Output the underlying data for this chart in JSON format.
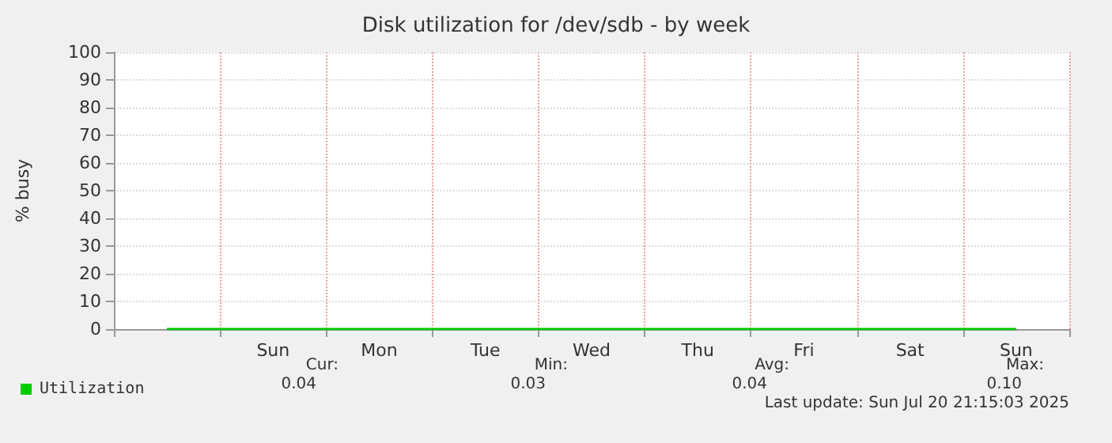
{
  "chart_data": {
    "type": "line",
    "title": "Disk utilization for /dev/sdb - by week",
    "ylabel": "% busy",
    "categories": [
      null,
      "Sun",
      "Mon",
      "Tue",
      "Wed",
      "Thu",
      "Fri",
      "Sat",
      "Sun"
    ],
    "series": [
      {
        "name": "Utilization",
        "color": "#00cc00",
        "values": [
          0,
          0,
          0,
          0,
          0,
          0,
          0,
          0,
          0
        ]
      }
    ],
    "ylim": [
      0,
      100
    ],
    "yticks": [
      0,
      10,
      20,
      30,
      40,
      50,
      60,
      70,
      80,
      90,
      100
    ],
    "grid": true,
    "legend": "bottom left",
    "marker": "none",
    "line_style": "solid",
    "annotations": [
      "Cur:",
      "0.04",
      "Min:",
      "0.03",
      "Avg:",
      "0.04",
      "Max:",
      "0.10",
      "Last update: Sun Jul 20 21:15:03 2025"
    ]
  }
}
